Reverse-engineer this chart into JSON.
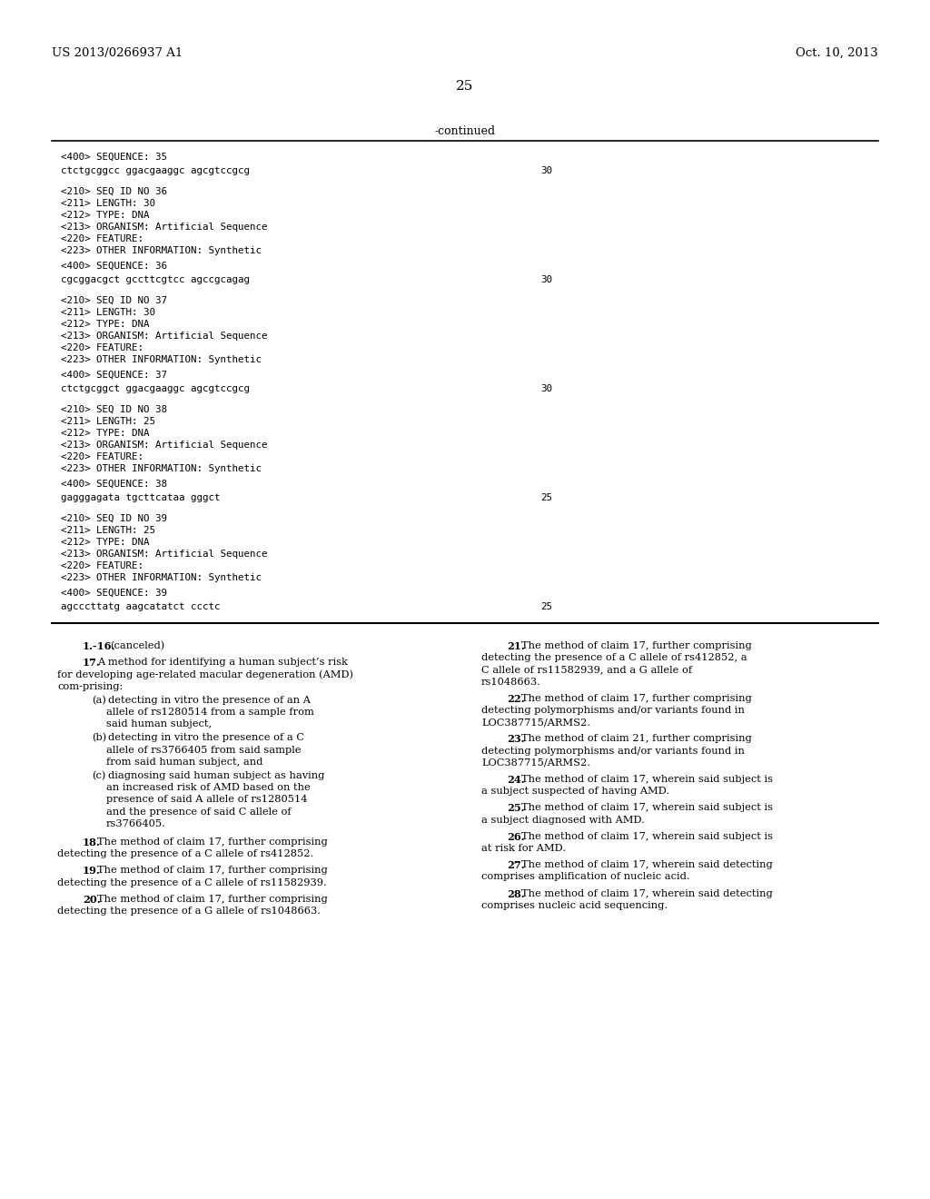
{
  "background_color": "#ffffff",
  "header_left": "US 2013/0266937 A1",
  "header_right": "Oct. 10, 2013",
  "page_number": "25",
  "continued_label": "-continued",
  "seq35": {
    "seq400_label": "<400> SEQUENCE: 35",
    "seq400_data": "ctctgcggcc ggacgaaggc agcgtccgcg",
    "seq400_num": "30"
  },
  "seq36": {
    "info_lines": [
      "<210> SEQ ID NO 36",
      "<211> LENGTH: 30",
      "<212> TYPE: DNA",
      "<213> ORGANISM: Artificial Sequence",
      "<220> FEATURE:",
      "<223> OTHER INFORMATION: Synthetic"
    ],
    "seq400_label": "<400> SEQUENCE: 36",
    "seq400_data": "cgcggacgct gccttcgtcc agccgcagag",
    "seq400_num": "30"
  },
  "seq37": {
    "info_lines": [
      "<210> SEQ ID NO 37",
      "<211> LENGTH: 30",
      "<212> TYPE: DNA",
      "<213> ORGANISM: Artificial Sequence",
      "<220> FEATURE:",
      "<223> OTHER INFORMATION: Synthetic"
    ],
    "seq400_label": "<400> SEQUENCE: 37",
    "seq400_data": "ctctgcggct ggacgaaggc agcgtccgcg",
    "seq400_num": "30"
  },
  "seq38": {
    "info_lines": [
      "<210> SEQ ID NO 38",
      "<211> LENGTH: 25",
      "<212> TYPE: DNA",
      "<213> ORGANISM: Artificial Sequence",
      "<220> FEATURE:",
      "<223> OTHER INFORMATION: Synthetic"
    ],
    "seq400_label": "<400> SEQUENCE: 38",
    "seq400_data": "gagggagata tgcttcataa gggct",
    "seq400_num": "25"
  },
  "seq39": {
    "info_lines": [
      "<210> SEQ ID NO 39",
      "<211> LENGTH: 25",
      "<212> TYPE: DNA",
      "<213> ORGANISM: Artificial Sequence",
      "<220> FEATURE:",
      "<223> OTHER INFORMATION: Synthetic"
    ],
    "seq400_label": "<400> SEQUENCE: 39",
    "seq400_data": "agcccttatg aagcatatct ccctc",
    "seq400_num": "25"
  },
  "left_claims": [
    {
      "num": "1.-16.",
      "text": "(canceled)",
      "type": "simple"
    },
    {
      "num": "17.",
      "text": "A method for identifying a human subject’s risk for developing age-related macular degeneration (AMD) comprising:",
      "type": "para"
    },
    {
      "type": "list",
      "items": [
        {
          "prefix": "(a)",
          "text": "detecting in vitro the presence of an A allele of rs1280514 from a sample from said human subject,"
        },
        {
          "prefix": "(b)",
          "text": "detecting in vitro the presence of a C allele of rs3766405 from said sample from said human subject, and"
        },
        {
          "prefix": "(c)",
          "text": "diagnosing said human subject as having an increased risk of AMD based on the presence of said A allele of rs1280514 and the presence of said C allele of rs3766405."
        }
      ]
    },
    {
      "num": "18.",
      "text": "The method of claim 17, further comprising detecting the presence of a C allele of rs412852.",
      "type": "para"
    },
    {
      "num": "19.",
      "text": "The method of claim 17, further comprising detecting the presence of a C allele of rs11582939.",
      "type": "para"
    },
    {
      "num": "20.",
      "text": "The method of claim 17, further comprising detecting the presence of a G allele of rs1048663.",
      "type": "para"
    }
  ],
  "right_claims": [
    {
      "num": "21.",
      "text": "The method of claim 17, further comprising detecting the presence of a C allele of rs412852, a C allele of rs11582939, and a G allele of rs1048663.",
      "type": "para"
    },
    {
      "num": "22.",
      "text": "The method of claim 17, further comprising detecting polymorphisms and/or variants found in LOC387715/ARMS2.",
      "type": "para"
    },
    {
      "num": "23.",
      "text": "The method of claim 21, further comprising detecting polymorphisms and/or variants found in LOC387715/ARMS2.",
      "type": "para"
    },
    {
      "num": "24.",
      "text": "The method of claim 17, wherein said subject is a subject suspected of having AMD.",
      "type": "para"
    },
    {
      "num": "25.",
      "text": "The method of claim 17, wherein said subject is a subject diagnosed with AMD.",
      "type": "para"
    },
    {
      "num": "26.",
      "text": "The method of claim 17, wherein said subject is at risk for AMD.",
      "type": "para"
    },
    {
      "num": "27.",
      "text": "The method of claim 17, wherein said detecting comprises amplification of nucleic acid.",
      "type": "para"
    },
    {
      "num": "28.",
      "text": "The method of claim 17, wherein said detecting comprises nucleic acid sequencing.",
      "type": "para"
    }
  ]
}
